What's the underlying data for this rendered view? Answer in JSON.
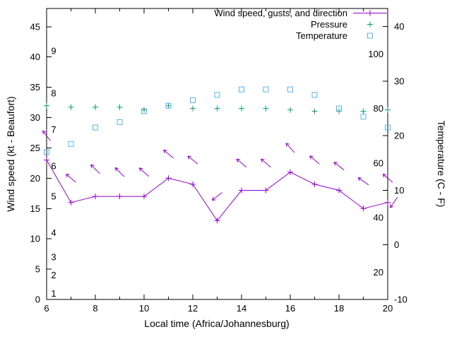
{
  "colors": {
    "wind": "#9400d3",
    "pressure": "#009e73",
    "temperature": "#56b4e9",
    "axis": "#000000",
    "background": "#ffffff"
  },
  "legend": {
    "entries": [
      "Wind speed, gusts, and direction",
      "Pressure",
      "Temperature"
    ]
  },
  "chart_data": {
    "type": "line",
    "title": "",
    "xlabel": "Local time (Africa/Johannesburg)",
    "ylabel_left": "Wind speed (kt - Beaufort)",
    "ylabel_right": "Temperature (C - F)",
    "xlim": [
      6,
      20
    ],
    "ylim_left": [
      0,
      48
    ],
    "ylim_right": [
      -10,
      43.33
    ],
    "grid": false,
    "legend_position": "top-right",
    "x_major_ticks": [
      6,
      8,
      10,
      12,
      14,
      16,
      18,
      20
    ],
    "x_minor_ticks": [
      7,
      9,
      11,
      13,
      15,
      17,
      19
    ],
    "y_left_ticks": [
      0,
      5,
      10,
      15,
      20,
      25,
      30,
      35,
      40,
      45
    ],
    "y_right_ticks": [
      -10,
      0,
      10,
      20,
      30,
      40
    ],
    "beaufort_scale": [
      {
        "label": "1",
        "kt": 1
      },
      {
        "label": "2",
        "kt": 4
      },
      {
        "label": "3",
        "kt": 7
      },
      {
        "label": "4",
        "kt": 11
      },
      {
        "label": "5",
        "kt": 17
      },
      {
        "label": "6",
        "kt": 22
      },
      {
        "label": "7",
        "kt": 28
      },
      {
        "label": "8",
        "kt": 34
      },
      {
        "label": "9",
        "kt": 41
      }
    ],
    "pressure_scale_labels": [
      20,
      40,
      60,
      80,
      100
    ],
    "x": [
      6,
      7,
      8,
      9,
      10,
      11,
      12,
      13,
      14,
      15,
      16,
      17,
      18,
      19,
      20
    ],
    "series": [
      {
        "name": "wind_speed",
        "legend": "Wind speed, gusts, and direction",
        "color": "#9400d3",
        "style": "linespoints",
        "marker": "plus",
        "axis": "left",
        "values": [
          23,
          16,
          17,
          17,
          17,
          20,
          19,
          13,
          18,
          18,
          21,
          19,
          18,
          15,
          16
        ]
      },
      {
        "name": "wind_gusts_direction",
        "color": "#9400d3",
        "style": "vectors",
        "axis": "left",
        "values": [
          27,
          20,
          21.5,
          21,
          21,
          24,
          23,
          17,
          22.5,
          22.5,
          25,
          23,
          22,
          19.5,
          20
        ],
        "angles_deg": [
          128,
          140,
          135,
          135,
          138,
          140,
          142,
          218,
          140,
          140,
          132,
          140,
          142,
          145,
          140
        ]
      },
      {
        "name": "pressure",
        "legend": "Pressure",
        "color": "#009e73",
        "style": "points",
        "marker": "plus",
        "axis": "pressure-inner",
        "values": [
          81,
          80.5,
          80.5,
          80.5,
          79.5,
          81,
          80,
          80,
          80,
          80,
          79.5,
          79,
          79,
          79,
          79.5
        ]
      },
      {
        "name": "temperature",
        "legend": "Temperature",
        "color": "#56b4e9",
        "style": "points",
        "marker": "open-square",
        "axis": "right",
        "values": [
          17,
          18.5,
          21.5,
          22.5,
          24.5,
          25.5,
          26.5,
          27.5,
          28.5,
          28.5,
          28.5,
          27.5,
          25,
          23.5,
          21.5
        ]
      }
    ],
    "extra_arrow": {
      "x": 20.25,
      "kt": 16,
      "angle_deg": 235
    }
  }
}
